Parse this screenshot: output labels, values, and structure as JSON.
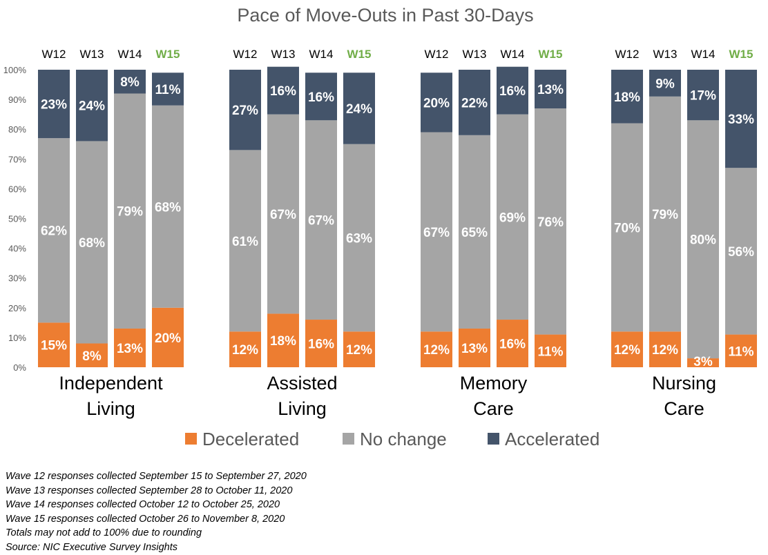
{
  "chart_data": {
    "type": "bar",
    "stacked": true,
    "percent_stacked": true,
    "title": "Pace of Move-Outs in Past 30-Days",
    "y_ticks": [
      "0%",
      "10%",
      "20%",
      "30%",
      "40%",
      "50%",
      "60%",
      "70%",
      "80%",
      "90%",
      "100%"
    ],
    "ylim": [
      0,
      100
    ],
    "highlight_wave": "W15",
    "highlight_color": "#70ad47",
    "legend_position": "bottom",
    "series": [
      {
        "name": "Decelerated",
        "color": "#ed7d31"
      },
      {
        "name": "No change",
        "color": "#a5a5a5"
      },
      {
        "name": "Accelerated",
        "color": "#44546a"
      }
    ],
    "groups": [
      {
        "label_lines": [
          "Independent",
          "Living"
        ],
        "bars": [
          {
            "wave": "W12",
            "values": [
              15,
              62,
              23
            ],
            "labels": [
              "15%",
              "62%",
              "23%"
            ]
          },
          {
            "wave": "W13",
            "values": [
              8,
              68,
              24
            ],
            "labels": [
              "8%",
              "68%",
              "24%"
            ]
          },
          {
            "wave": "W14",
            "values": [
              13,
              79,
              8
            ],
            "labels": [
              "13%",
              "79%",
              "8%"
            ]
          },
          {
            "wave": "W15",
            "values": [
              20,
              68,
              11
            ],
            "labels": [
              "20%",
              "68%",
              "11%"
            ]
          }
        ]
      },
      {
        "label_lines": [
          "Assisted",
          "Living"
        ],
        "bars": [
          {
            "wave": "W12",
            "values": [
              12,
              61,
              27
            ],
            "labels": [
              "12%",
              "61%",
              "27%"
            ]
          },
          {
            "wave": "W13",
            "values": [
              18,
              67,
              16
            ],
            "labels": [
              "18%",
              "67%",
              "16%"
            ]
          },
          {
            "wave": "W14",
            "values": [
              16,
              67,
              16
            ],
            "labels": [
              "16%",
              "67%",
              "16%"
            ]
          },
          {
            "wave": "W15",
            "values": [
              12,
              63,
              24
            ],
            "labels": [
              "12%",
              "63%",
              "24%"
            ]
          }
        ]
      },
      {
        "label_lines": [
          "Memory",
          "Care"
        ],
        "bars": [
          {
            "wave": "W12",
            "values": [
              12,
              67,
              20
            ],
            "labels": [
              "12%",
              "67%",
              "20%"
            ]
          },
          {
            "wave": "W13",
            "values": [
              13,
              65,
              22
            ],
            "labels": [
              "13%",
              "65%",
              "22%"
            ]
          },
          {
            "wave": "W14",
            "values": [
              16,
              69,
              16
            ],
            "labels": [
              "16%",
              "69%",
              "16%"
            ]
          },
          {
            "wave": "W15",
            "values": [
              11,
              76,
              13
            ],
            "labels": [
              "11%",
              "76%",
              "13%"
            ]
          }
        ]
      },
      {
        "label_lines": [
          "Nursing",
          "Care"
        ],
        "bars": [
          {
            "wave": "W12",
            "values": [
              12,
              70,
              18
            ],
            "labels": [
              "12%",
              "70%",
              "18%"
            ]
          },
          {
            "wave": "W13",
            "values": [
              12,
              79,
              9
            ],
            "labels": [
              "12%",
              "79%",
              "9%"
            ]
          },
          {
            "wave": "W14",
            "values": [
              3,
              80,
              17
            ],
            "labels": [
              "3%",
              "80%",
              "17%"
            ]
          },
          {
            "wave": "W15",
            "values": [
              11,
              56,
              33
            ],
            "labels": [
              "11%",
              "56%",
              "33%"
            ]
          }
        ]
      }
    ]
  },
  "notes": [
    "Wave 12 responses collected September 15 to September 27, 2020",
    "Wave 13 responses collected September 28 to October 11, 2020",
    "Wave 14 responses collected October 12 to October 25, 2020",
    "Wave 15 responses collected October 26 to November 8, 2020",
    "Totals may not add to 100% due to rounding",
    "Source: NIC Executive Survey Insights"
  ]
}
